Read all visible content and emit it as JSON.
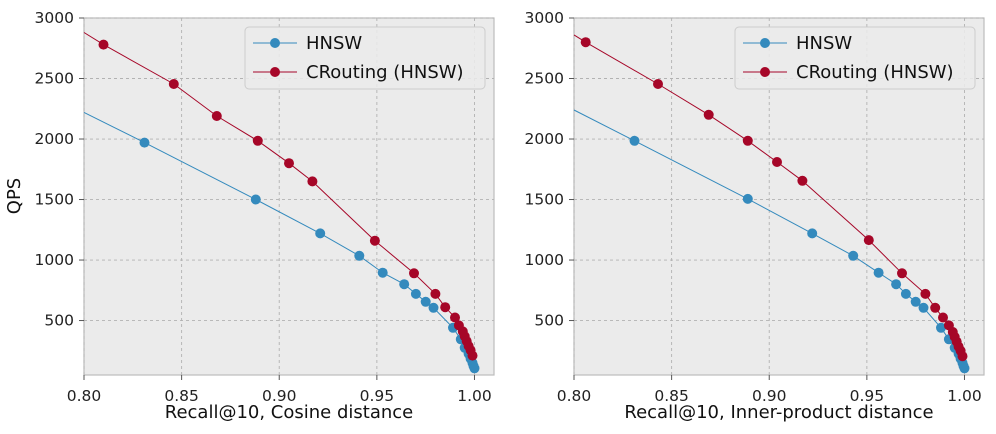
{
  "colors": {
    "hnsw": "#348ABD",
    "crouting": "#A60628"
  },
  "chart_data": [
    {
      "type": "line",
      "title": "",
      "xlabel": "Recall@10, Cosine distance",
      "ylabel": "QPS",
      "xlim": [
        0.8,
        1.01
      ],
      "ylim": [
        50,
        3000
      ],
      "xticks": [
        0.8,
        0.85,
        0.9,
        0.95,
        1.0
      ],
      "xtick_labels": [
        "0.80",
        "0.85",
        "0.90",
        "0.95",
        "1.00"
      ],
      "yticks": [
        500,
        1000,
        1500,
        2000,
        2500,
        3000
      ],
      "ytick_labels": [
        "500",
        "1000",
        "1500",
        "2000",
        "2500",
        "3000"
      ],
      "grid": true,
      "legend_position": "top-right",
      "series": [
        {
          "name": "HNSW",
          "color": "#348ABD",
          "line_start": [
            0.8,
            2220
          ],
          "x": [
            0.831,
            0.888,
            0.921,
            0.941,
            0.953,
            0.964,
            0.97,
            0.975,
            0.979,
            0.989,
            0.993,
            0.995,
            0.997,
            0.998,
            0.999,
            0.9995,
            1.0
          ],
          "y": [
            1970,
            1500,
            1220,
            1035,
            895,
            800,
            720,
            655,
            605,
            440,
            345,
            275,
            225,
            185,
            150,
            125,
            105
          ]
        },
        {
          "name": "CRouting (HNSW)",
          "color": "#A60628",
          "line_start": [
            0.8,
            2880
          ],
          "x": [
            0.81,
            0.846,
            0.868,
            0.889,
            0.905,
            0.917,
            0.949,
            0.969,
            0.98,
            0.985,
            0.99,
            0.992,
            0.994,
            0.995,
            0.996,
            0.997,
            0.998,
            0.999
          ],
          "y": [
            2780,
            2455,
            2190,
            1985,
            1800,
            1650,
            1160,
            890,
            720,
            610,
            525,
            460,
            410,
            370,
            330,
            290,
            255,
            210
          ]
        }
      ]
    },
    {
      "type": "line",
      "title": "",
      "xlabel": "Recall@10, Inner-product distance",
      "ylabel": "",
      "xlim": [
        0.8,
        1.01
      ],
      "ylim": [
        50,
        3000
      ],
      "xticks": [
        0.8,
        0.85,
        0.9,
        0.95,
        1.0
      ],
      "xtick_labels": [
        "0.80",
        "0.85",
        "0.90",
        "0.95",
        "1.00"
      ],
      "yticks": [
        500,
        1000,
        1500,
        2000,
        2500,
        3000
      ],
      "ytick_labels": [
        "500",
        "1000",
        "1500",
        "2000",
        "2500",
        "3000"
      ],
      "grid": true,
      "legend_position": "top-right",
      "series": [
        {
          "name": "HNSW",
          "color": "#348ABD",
          "line_start": [
            0.8,
            2240
          ],
          "x": [
            0.831,
            0.889,
            0.922,
            0.943,
            0.956,
            0.965,
            0.97,
            0.975,
            0.979,
            0.988,
            0.992,
            0.995,
            0.997,
            0.998,
            0.999,
            0.9995,
            1.0
          ],
          "y": [
            1985,
            1505,
            1220,
            1035,
            895,
            800,
            720,
            655,
            605,
            440,
            345,
            275,
            225,
            185,
            150,
            125,
            105
          ]
        },
        {
          "name": "CRouting (HNSW)",
          "color": "#A60628",
          "line_start": [
            0.8,
            2860
          ],
          "x": [
            0.806,
            0.843,
            0.869,
            0.889,
            0.904,
            0.917,
            0.951,
            0.968,
            0.98,
            0.985,
            0.989,
            0.992,
            0.994,
            0.995,
            0.996,
            0.997,
            0.998,
            0.999
          ],
          "y": [
            2800,
            2455,
            2200,
            1985,
            1810,
            1655,
            1165,
            890,
            720,
            605,
            525,
            460,
            405,
            365,
            325,
            285,
            250,
            205
          ]
        }
      ]
    }
  ]
}
